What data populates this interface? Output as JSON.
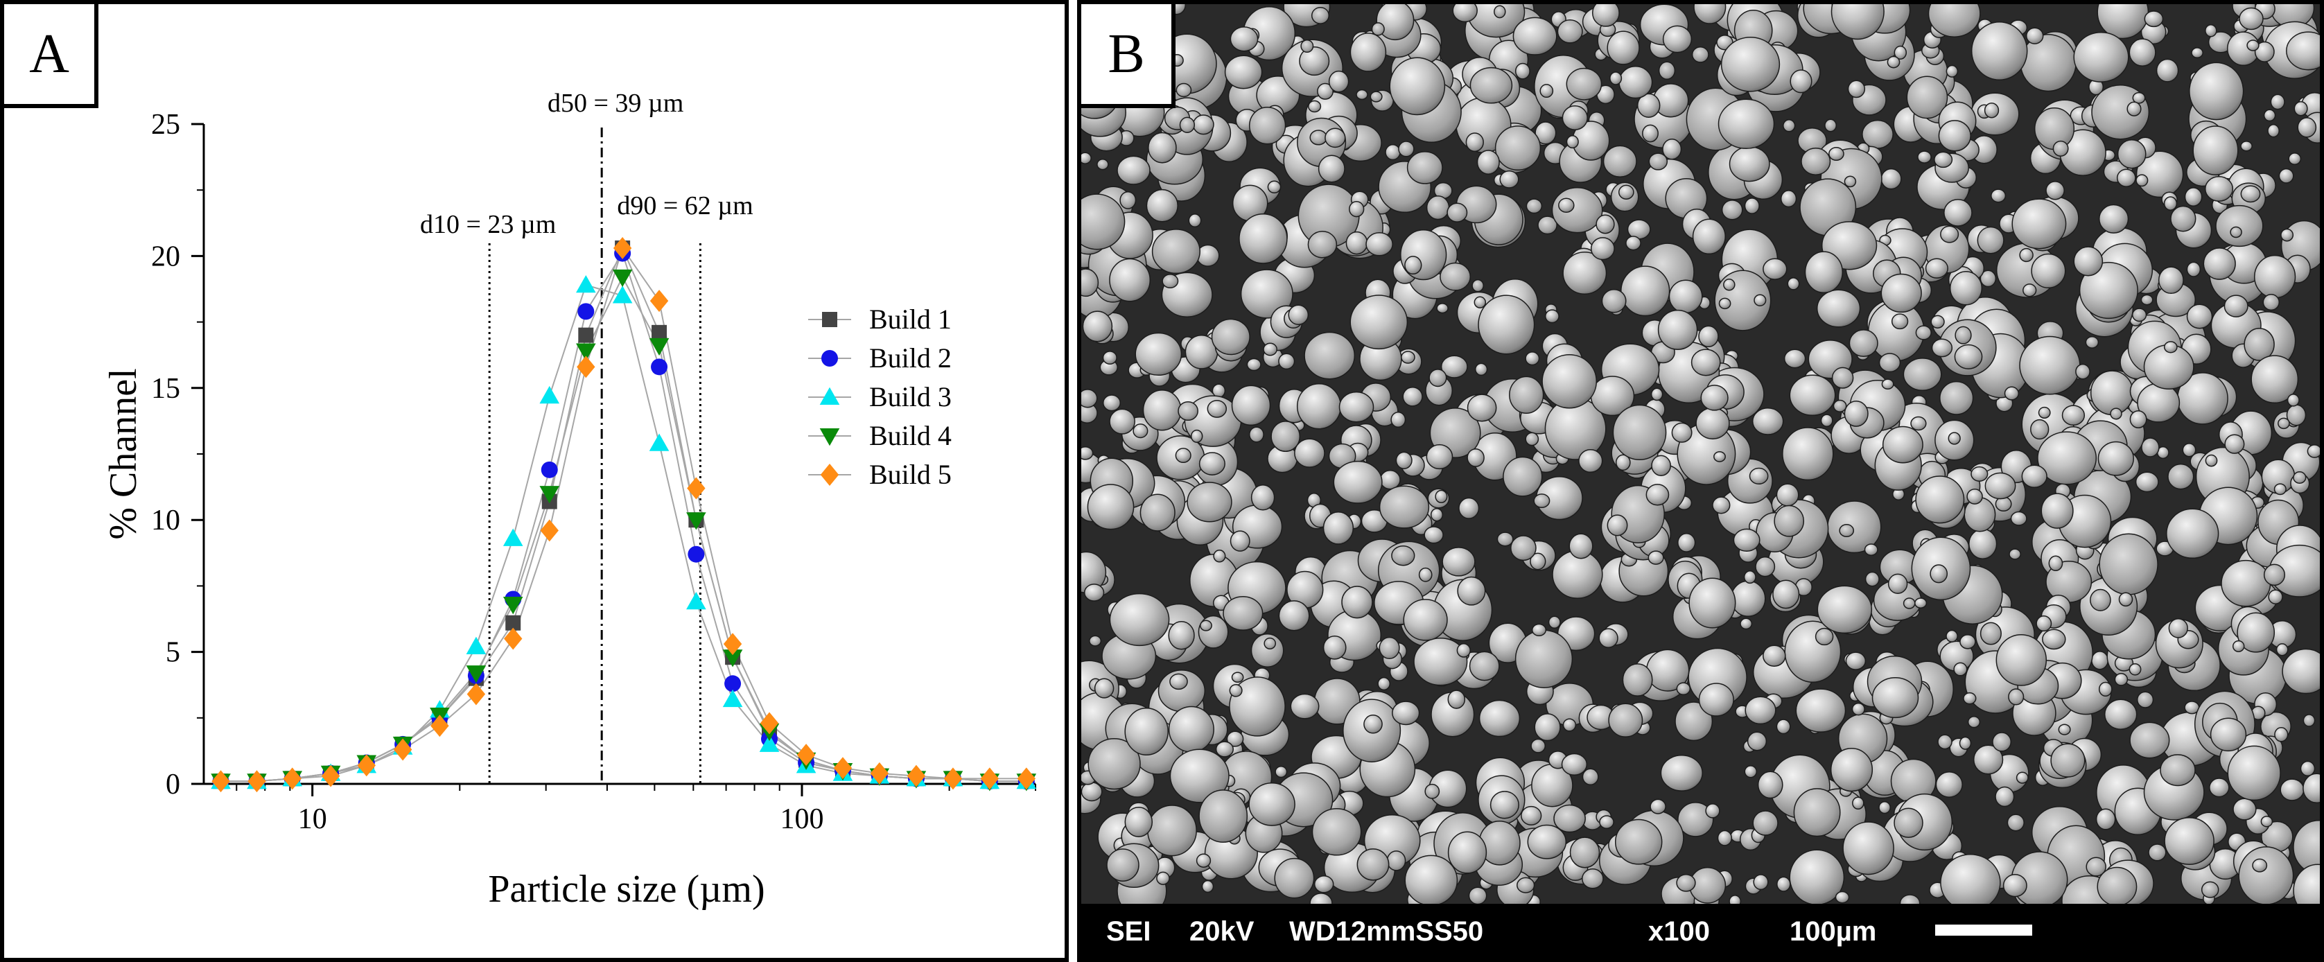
{
  "panel_a": {
    "label": "A"
  },
  "panel_b": {
    "label": "B",
    "sem_info": {
      "mode": "SEI",
      "voltage": "20kV",
      "working_distance": "WD12mmSS50",
      "magnification": "x100",
      "scale_label": "100µm"
    }
  },
  "chart_data": {
    "type": "line",
    "xlabel": "Particle size (µm)",
    "ylabel": "% Channel",
    "x_scale": "log",
    "xlim": [
      6,
      300
    ],
    "ylim": [
      0,
      25
    ],
    "x_tick_labels": [
      "10",
      "100"
    ],
    "y_ticks": [
      0,
      5,
      10,
      15,
      20,
      25
    ],
    "legend_position": "right",
    "grid": false,
    "x": [
      6.5,
      7.7,
      9.1,
      10.9,
      12.9,
      15.3,
      18.2,
      21.6,
      25.7,
      30.5,
      36.2,
      43,
      51.1,
      60.8,
      72.2,
      85.8,
      102,
      121.2,
      144,
      171.2,
      203.5,
      241.8,
      287.4
    ],
    "series": [
      {
        "name": "Build 1",
        "color": "#444444",
        "marker": "square",
        "values": [
          0.1,
          0.1,
          0.2,
          0.4,
          0.8,
          1.5,
          2.5,
          4.0,
          6.1,
          10.7,
          17.0,
          20.3,
          17.1,
          10.0,
          4.8,
          1.9,
          0.9,
          0.5,
          0.3,
          0.2,
          0.2,
          0.1,
          0.1
        ]
      },
      {
        "name": "Build 2",
        "color": "#1414e6",
        "marker": "circle",
        "values": [
          0.1,
          0.1,
          0.2,
          0.4,
          0.8,
          1.5,
          2.5,
          4.1,
          7.0,
          11.9,
          17.9,
          20.1,
          15.8,
          8.7,
          3.8,
          1.7,
          0.8,
          0.5,
          0.3,
          0.2,
          0.2,
          0.1,
          0.1
        ]
      },
      {
        "name": "Build 3",
        "color": "#00e6f0",
        "marker": "triangle-up",
        "values": [
          0.1,
          0.1,
          0.2,
          0.4,
          0.7,
          1.4,
          2.8,
          5.2,
          9.3,
          14.7,
          18.9,
          18.5,
          12.9,
          6.9,
          3.2,
          1.5,
          0.7,
          0.4,
          0.3,
          0.2,
          0.2,
          0.1,
          0.1
        ]
      },
      {
        "name": "Build 4",
        "color": "#0a8a0a",
        "marker": "triangle-down",
        "values": [
          0.1,
          0.1,
          0.2,
          0.4,
          0.8,
          1.5,
          2.6,
          4.2,
          6.8,
          11.0,
          16.4,
          19.2,
          16.6,
          10.0,
          4.8,
          2.0,
          0.9,
          0.5,
          0.3,
          0.2,
          0.2,
          0.1,
          0.1
        ]
      },
      {
        "name": "Build 5",
        "color": "#ff8c14",
        "marker": "diamond",
        "values": [
          0.1,
          0.1,
          0.2,
          0.3,
          0.7,
          1.3,
          2.2,
          3.4,
          5.5,
          9.6,
          15.8,
          20.3,
          18.3,
          11.2,
          5.3,
          2.3,
          1.1,
          0.6,
          0.4,
          0.3,
          0.2,
          0.2,
          0.2
        ]
      }
    ],
    "reference_lines": [
      {
        "x": 23,
        "label": "d10 = 23 µm",
        "style": "dotted"
      },
      {
        "x": 39,
        "label": "d50 = 39 µm",
        "style": "dashdot"
      },
      {
        "x": 62,
        "label": "d90 = 62 µm",
        "style": "dotted"
      }
    ]
  }
}
